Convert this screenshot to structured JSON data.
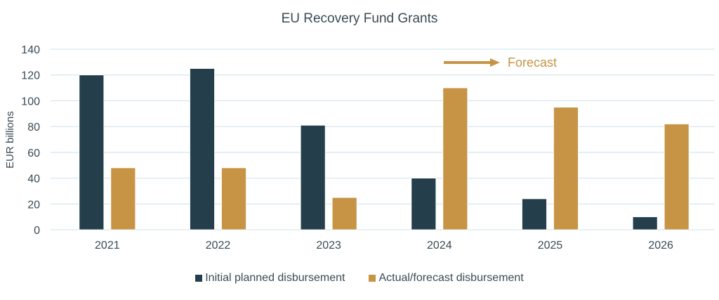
{
  "chart_data": {
    "type": "bar",
    "title": "EU Recovery Fund Grants",
    "xlabel": "",
    "ylabel": "EUR billions",
    "ylim": [
      0,
      140
    ],
    "yticks": [
      0,
      20,
      40,
      60,
      80,
      100,
      120,
      140
    ],
    "grid": true,
    "legend_position": "bottom",
    "categories": [
      "2021",
      "2022",
      "2023",
      "2024",
      "2025",
      "2026"
    ],
    "series": [
      {
        "name": "Initial planned disbursement",
        "color": "#243f4b",
        "values": [
          120,
          125,
          81,
          40,
          24,
          10
        ]
      },
      {
        "name": "Actual/forecast disbursement",
        "color": "#c79445",
        "values": [
          48,
          48,
          25,
          110,
          95,
          82
        ]
      }
    ],
    "annotation": {
      "text": "Forecast",
      "icon": "right-arrow-icon",
      "color": "#c79445"
    }
  }
}
